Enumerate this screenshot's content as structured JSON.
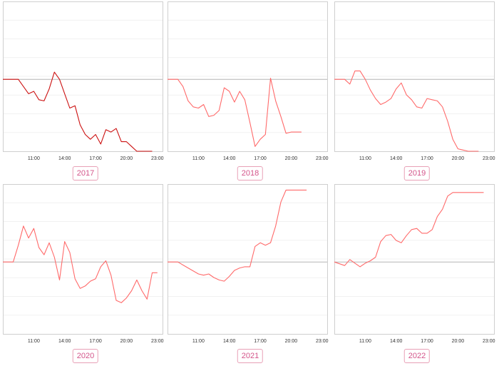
{
  "chart_data": [
    {
      "type": "line",
      "year_label": "2017",
      "x_ticks": [
        "11:00",
        "14:00",
        "17:00",
        "20:00",
        "23:00"
      ],
      "xlim": [
        8,
        23.5
      ],
      "ylim": [
        -3,
        3.25
      ],
      "baseline": 0,
      "line_color": "#cc1111",
      "x": [
        8,
        9,
        9.5,
        10,
        10.5,
        11,
        11.5,
        12,
        12.5,
        13,
        13.5,
        14,
        14.5,
        15,
        15.5,
        16,
        16.5,
        17,
        17.5,
        18,
        18.5,
        19,
        19.5,
        20,
        20.5,
        21,
        21.5,
        22,
        22.5
      ],
      "y": [
        0,
        0,
        0,
        -0.3,
        -0.6,
        -0.5,
        -0.85,
        -0.9,
        -0.4,
        0.3,
        0,
        -0.6,
        -1.2,
        -1.1,
        -1.9,
        -2.3,
        -2.5,
        -2.3,
        -2.7,
        -2.1,
        -2.2,
        -2.05,
        -2.6,
        -2.6,
        -2.8,
        -3,
        -3,
        -3,
        -3
      ]
    },
    {
      "type": "line",
      "year_label": "2018",
      "x_ticks": [
        "11:00",
        "14:00",
        "17:00",
        "20:00",
        "23:00"
      ],
      "xlim": [
        8,
        23.5
      ],
      "ylim": [
        -3,
        3.25
      ],
      "baseline": 0,
      "line_color": "#ff6a6a",
      "x": [
        8,
        9,
        9.5,
        10,
        10.5,
        11,
        11.5,
        12,
        12.5,
        13,
        13.5,
        14,
        14.5,
        15,
        15.5,
        16,
        16.5,
        17,
        17.5,
        18,
        18.5,
        19,
        19.5,
        20,
        20.5,
        21
      ],
      "y": [
        0,
        0,
        -0.3,
        -0.9,
        -1.15,
        -1.2,
        -1.05,
        -1.55,
        -1.5,
        -1.3,
        -0.35,
        -0.5,
        -0.95,
        -0.5,
        -0.85,
        -1.8,
        -2.8,
        -2.5,
        -2.3,
        0.05,
        -0.9,
        -1.55,
        -2.25,
        -2.2,
        -2.2,
        -2.2
      ]
    },
    {
      "type": "line",
      "year_label": "2019",
      "x_ticks": [
        "11:00",
        "14:00",
        "17:00",
        "20:00",
        "23:00"
      ],
      "xlim": [
        8,
        23.5
      ],
      "ylim": [
        -3,
        3.25
      ],
      "baseline": 0,
      "line_color": "#ff6a6a",
      "x": [
        8,
        9,
        9.5,
        10,
        10.5,
        11,
        11.5,
        12,
        12.5,
        13,
        13.5,
        14,
        14.5,
        15,
        15.5,
        16,
        16.5,
        17,
        17.5,
        18,
        18.5,
        19,
        19.5,
        20,
        20.5,
        21,
        21.5,
        22
      ],
      "y": [
        0,
        0,
        -0.2,
        0.35,
        0.35,
        0,
        -0.45,
        -0.8,
        -1.05,
        -0.95,
        -0.8,
        -0.4,
        -0.15,
        -0.65,
        -0.85,
        -1.15,
        -1.2,
        -0.8,
        -0.85,
        -0.9,
        -1.15,
        -1.75,
        -2.5,
        -2.9,
        -2.95,
        -3,
        -3,
        -3
      ]
    },
    {
      "type": "line",
      "year_label": "2020",
      "x_ticks": [
        "11:00",
        "14:00",
        "17:00",
        "20:00",
        "23:00"
      ],
      "xlim": [
        8,
        23.5
      ],
      "ylim": [
        -3,
        3.25
      ],
      "baseline": 0,
      "line_color": "#ff6a6a",
      "x": [
        8,
        9,
        9.5,
        10,
        10.5,
        11,
        11.5,
        12,
        12.5,
        13,
        13.5,
        14,
        14.5,
        15,
        15.5,
        16,
        16.5,
        17,
        17.5,
        18,
        18.5,
        19,
        19.5,
        20,
        20.5,
        21,
        21.5,
        22,
        22.5,
        23
      ],
      "y": [
        0,
        0,
        0.7,
        1.5,
        1.0,
        1.4,
        0.6,
        0.3,
        0.8,
        0.2,
        -0.75,
        0.85,
        0.4,
        -0.7,
        -1.1,
        -1.0,
        -0.8,
        -0.7,
        -0.2,
        0.05,
        -0.55,
        -1.6,
        -1.7,
        -1.5,
        -1.2,
        -0.75,
        -1.2,
        -1.55,
        -0.45,
        -0.45
      ]
    },
    {
      "type": "line",
      "year_label": "2021",
      "x_ticks": [
        "11:00",
        "14:00",
        "17:00",
        "20:00",
        "23:00"
      ],
      "xlim": [
        8,
        23.5
      ],
      "ylim": [
        -3,
        3.25
      ],
      "baseline": 0,
      "line_color": "#ff6a6a",
      "x": [
        8,
        9,
        10,
        11,
        11.5,
        12,
        12.5,
        13,
        13.5,
        14,
        14.5,
        15,
        15.5,
        16,
        16.5,
        17,
        17.5,
        18,
        18.5,
        19,
        19.5,
        20,
        20.5,
        21,
        21.5
      ],
      "y": [
        0,
        0,
        -0.25,
        -0.5,
        -0.55,
        -0.5,
        -0.65,
        -0.75,
        -0.8,
        -0.6,
        -0.35,
        -0.25,
        -0.2,
        -0.2,
        0.65,
        0.8,
        0.7,
        0.8,
        1.5,
        2.5,
        3.0,
        3.0,
        3.0,
        3.0,
        3.0
      ]
    },
    {
      "type": "line",
      "year_label": "2022",
      "x_ticks": [
        "11:00",
        "14:00",
        "17:00",
        "20:00",
        "23:00"
      ],
      "xlim": [
        8,
        23.5
      ],
      "ylim": [
        -3,
        3.25
      ],
      "baseline": 0,
      "line_color": "#ff6a6a",
      "x": [
        8,
        9,
        9.5,
        10,
        10.5,
        11,
        11.5,
        12,
        12.5,
        13,
        13.5,
        14,
        14.5,
        15,
        15.5,
        16,
        16.5,
        17,
        17.5,
        18,
        18.5,
        19,
        19.5,
        20,
        20.5,
        21,
        21.5,
        22,
        22.5
      ],
      "y": [
        0,
        -0.15,
        0.1,
        -0.05,
        -0.2,
        -0.05,
        0.05,
        0.2,
        0.85,
        1.1,
        1.15,
        0.9,
        0.8,
        1.1,
        1.35,
        1.4,
        1.2,
        1.2,
        1.35,
        1.9,
        2.2,
        2.75,
        2.9,
        2.9,
        2.9,
        2.9,
        2.9,
        2.9,
        2.9
      ]
    }
  ]
}
